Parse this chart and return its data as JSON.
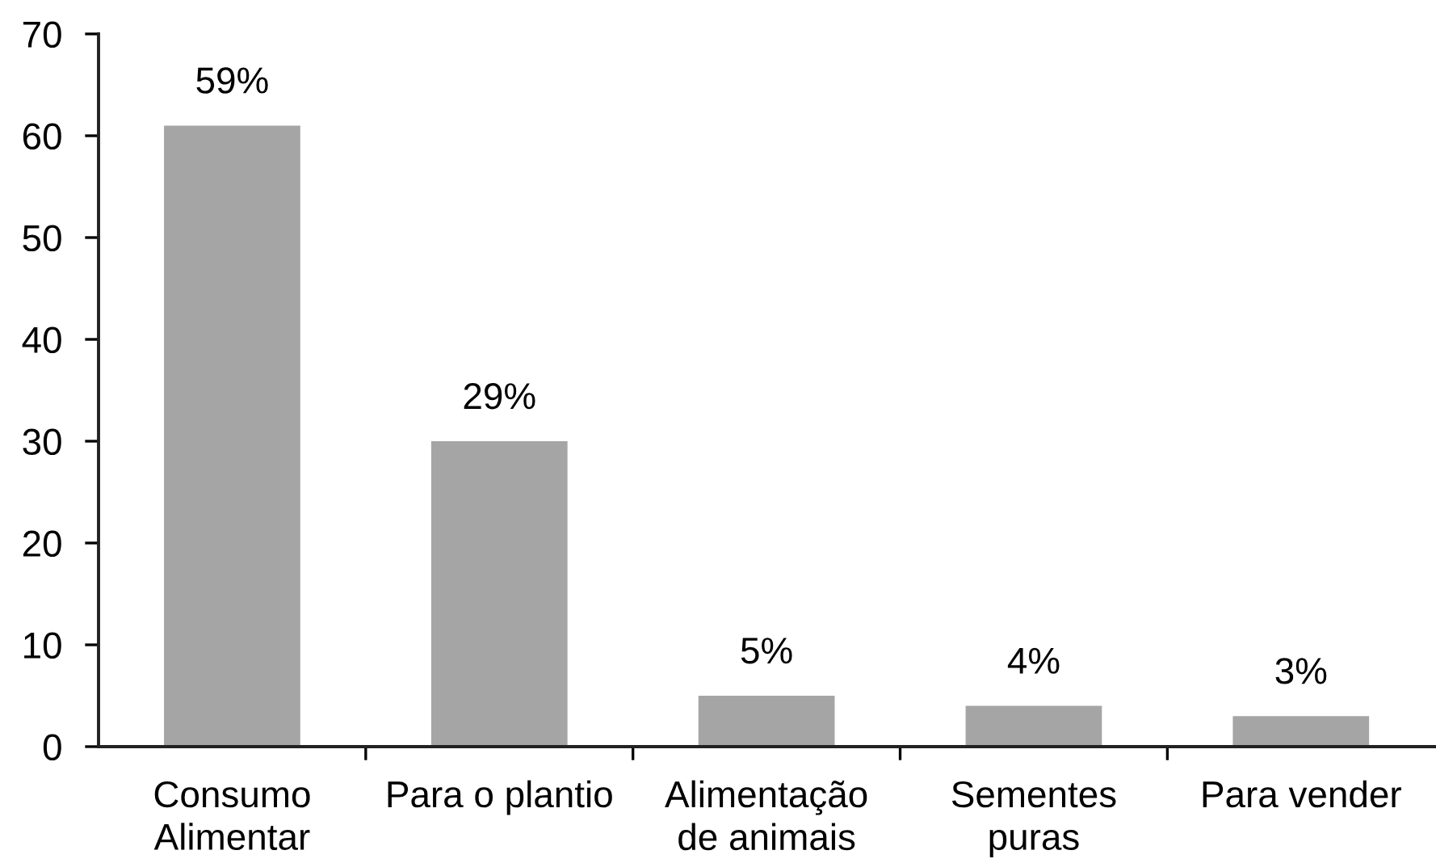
{
  "chart_data": {
    "type": "bar",
    "categories": [
      "Consumo\nAlimentar",
      "Para o plantio",
      "Alimentação\nde animais",
      "Sementes\npuras",
      "Para vender"
    ],
    "values": [
      61,
      30,
      5,
      4,
      3
    ],
    "color": "#a5a5a5",
    "ylim": [
      0,
      70
    ],
    "yticks": [
      0,
      10,
      20,
      30,
      40,
      50,
      60,
      70
    ],
    "annotations": [
      {
        "text": "59%",
        "x": "Consumo\nAlimentar",
        "y": 61
      },
      {
        "text": "29%",
        "x": "Para o plantio",
        "y": 30
      },
      {
        "text": "5%",
        "x": "Alimentação\nde animais",
        "y": 5
      },
      {
        "text": "4%",
        "x": "Sementes\npuras",
        "y": 4
      },
      {
        "text": "3%",
        "x": "Para vender",
        "y": 3
      }
    ],
    "grid": false,
    "legend": false
  }
}
